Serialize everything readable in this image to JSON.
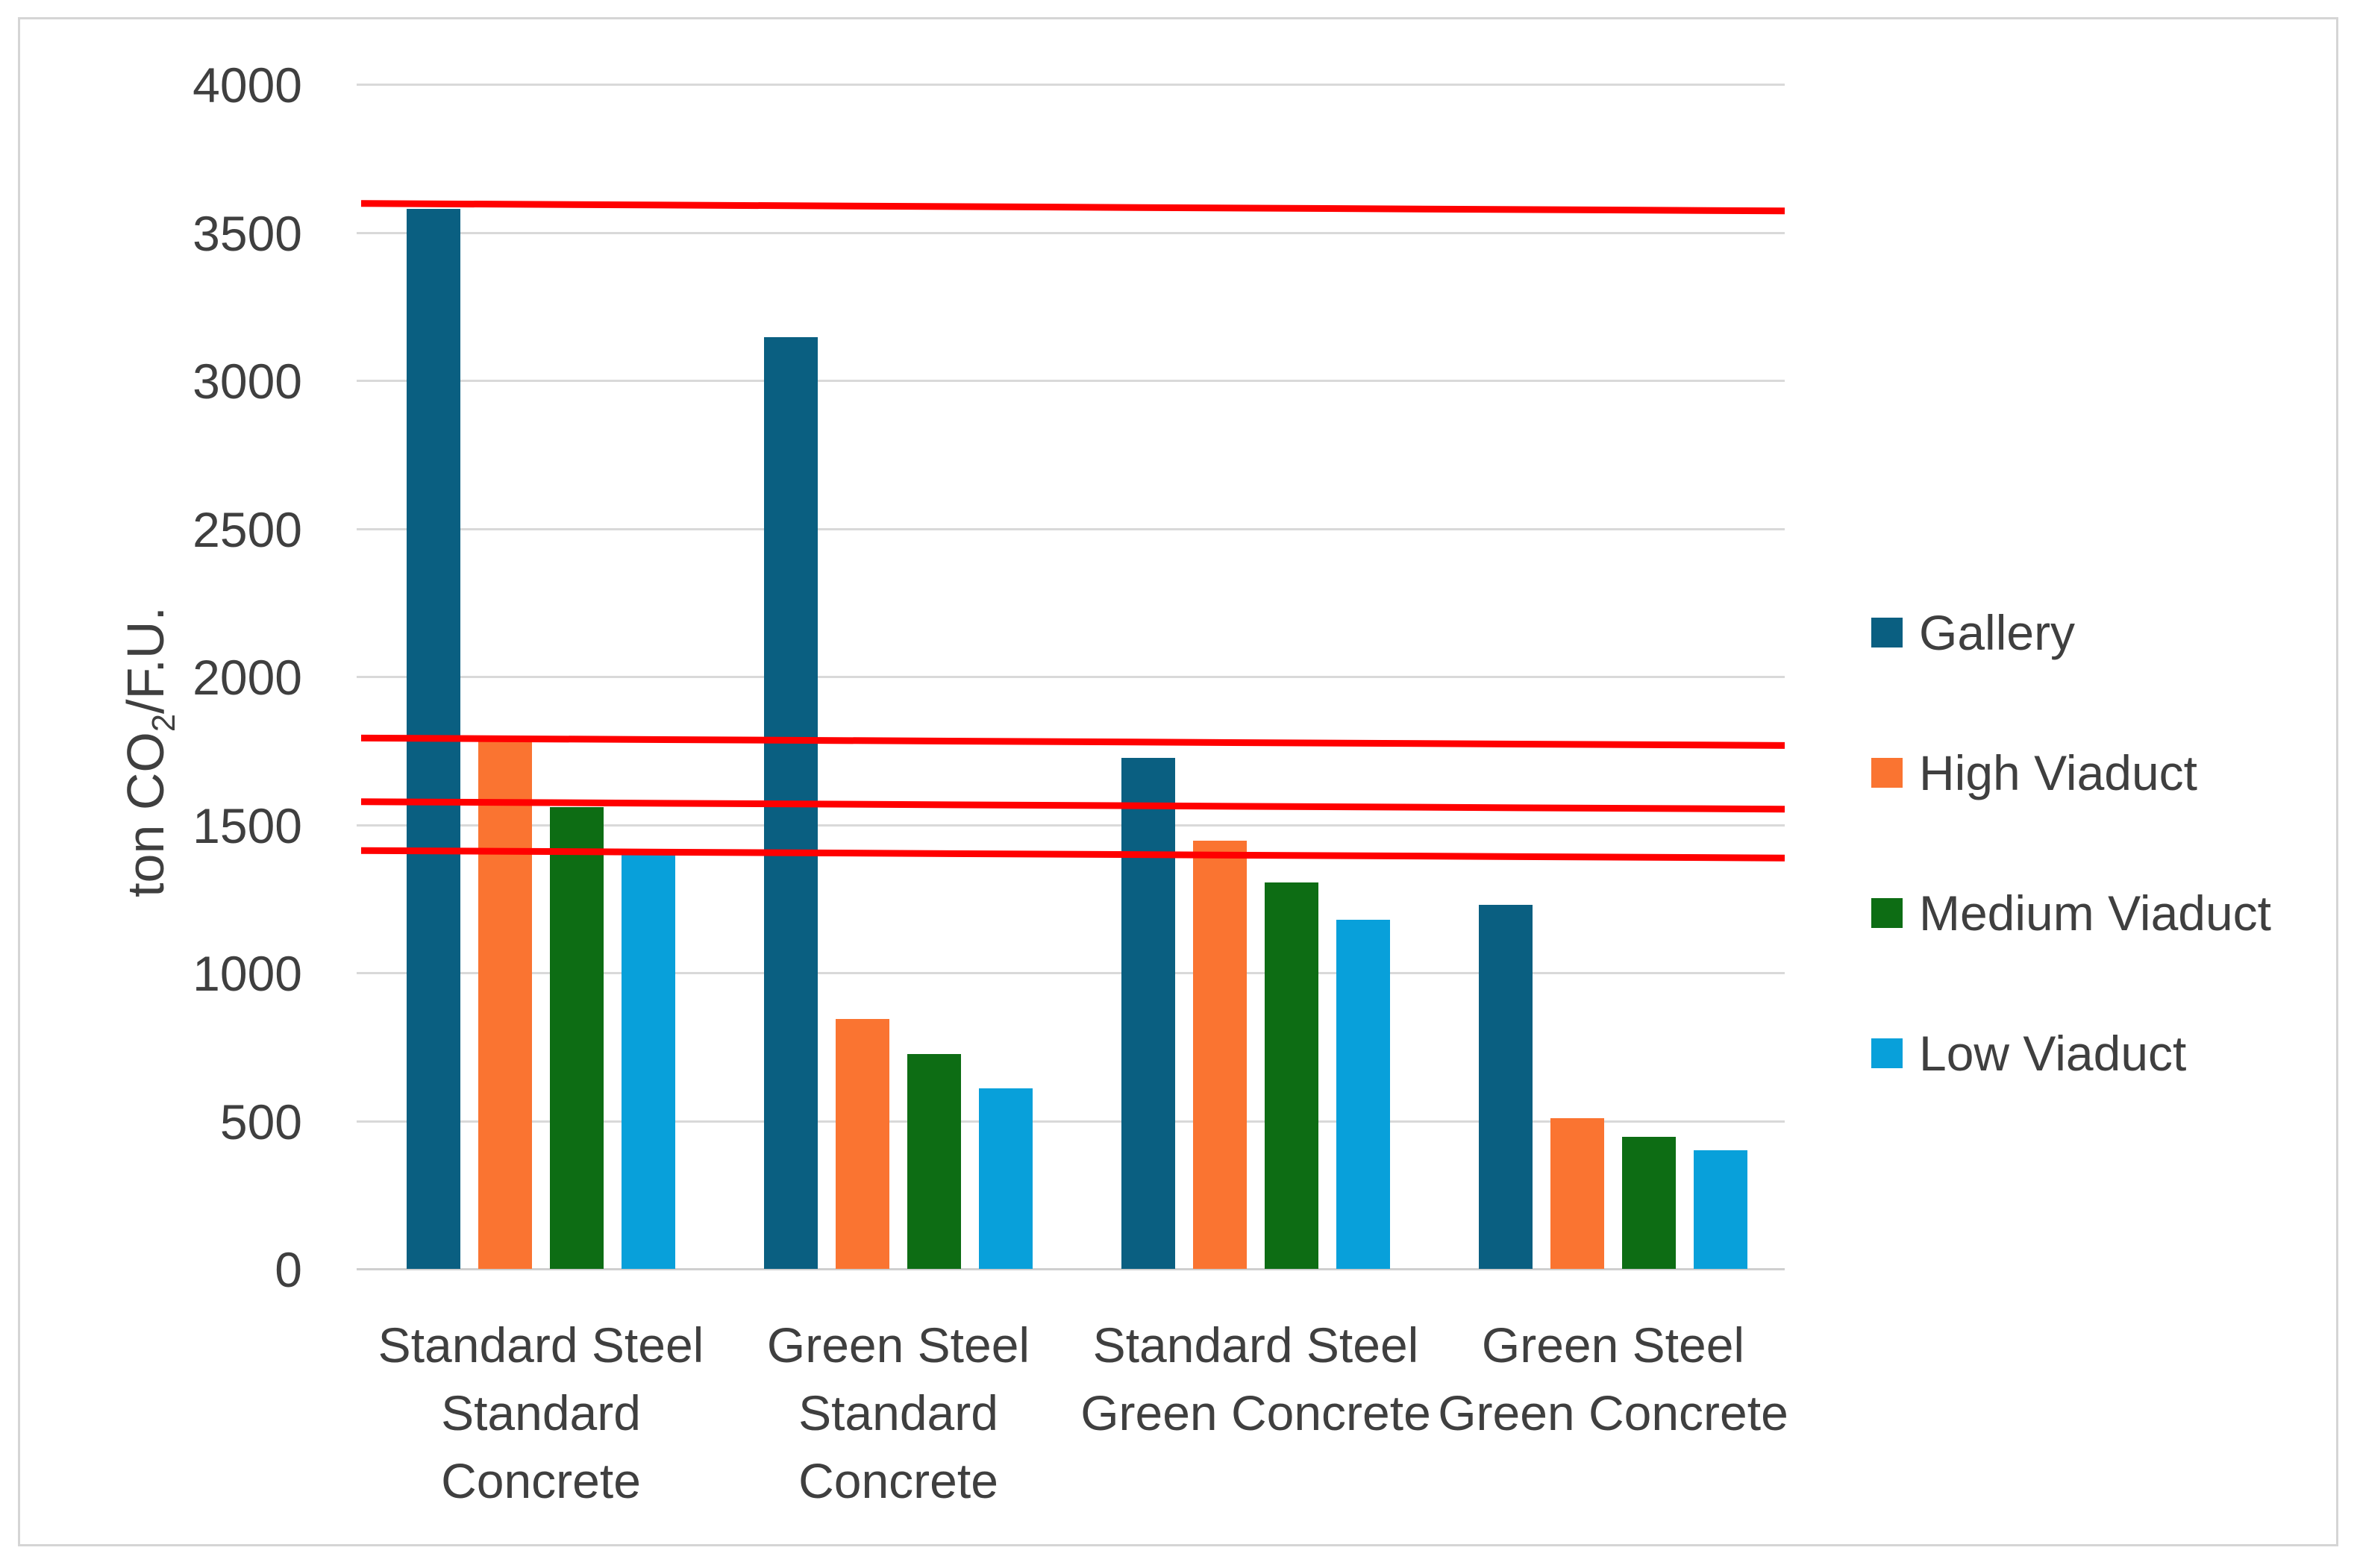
{
  "figure": {
    "background": "#FFFFFF",
    "border_color": "#D5D5D5"
  },
  "chart_data": {
    "type": "bar",
    "title": "",
    "ylabel": "ton CO₂/F.U.",
    "xlabel": "",
    "categories": [
      "Standard Steel\nStandard\nConcrete",
      "Green Steel\nStandard\nConcrete",
      "Standard Steel\nGreen Concrete",
      "Green Steel\nGreen Concrete"
    ],
    "series": [
      {
        "name": "Gallery",
        "color": "#0A5F81",
        "values": [
          3580,
          3145,
          1725,
          1230
        ]
      },
      {
        "name": "High Viaduct",
        "color": "#FA7431",
        "values": [
          1780,
          845,
          1445,
          510
        ]
      },
      {
        "name": "Medium Viaduct",
        "color": "#0D6D14",
        "values": [
          1560,
          725,
          1305,
          445
        ]
      },
      {
        "name": "Low Viaduct",
        "color": "#08A0DA",
        "values": [
          1400,
          610,
          1180,
          400
        ]
      }
    ],
    "reference_lines": {
      "color": "#FF0000",
      "values": [
        3590,
        1785,
        1570,
        1405
      ],
      "description": "Red benchmark lines at the tops of the Standard Steel / Standard Concrete bars"
    },
    "y_axis": {
      "min": 0,
      "max": 4000,
      "step": 500,
      "tick_labels": [
        "0",
        "500",
        "1000",
        "1500",
        "2000",
        "2500",
        "3000",
        "3500",
        "4000"
      ]
    },
    "x_axis": {
      "tick_labels": [
        "Standard Steel Standard Concrete",
        "Green Steel Standard Concrete",
        "Standard Steel Green Concrete",
        "Green Steel Green Concrete"
      ]
    },
    "legend": {
      "position": "right",
      "entries": [
        "Gallery",
        "High Viaduct",
        "Medium Viaduct",
        "Low Viaduct"
      ]
    },
    "grid": true,
    "text_color": "#3F3F3F",
    "gridline_color": "#D9D9D9"
  }
}
